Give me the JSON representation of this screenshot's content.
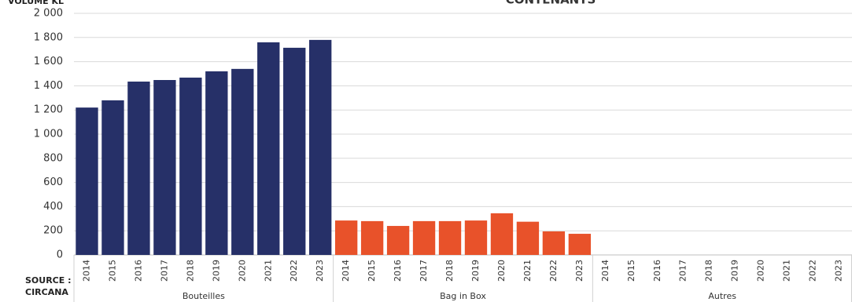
{
  "chart_data": {
    "type": "bar",
    "title": "CONTENANTS",
    "y_label": "VOLUME KL",
    "source": [
      "SOURCE :",
      "CIRCANA"
    ],
    "groups": [
      {
        "name": "Bouteilles",
        "color": "#263068",
        "categories": [
          "2014",
          "2015",
          "2016",
          "2017",
          "2018",
          "2019",
          "2020",
          "2021",
          "2022",
          "2023"
        ],
        "values": [
          1220,
          1280,
          1435,
          1448,
          1468,
          1520,
          1540,
          1760,
          1715,
          1780
        ]
      },
      {
        "name": "Bag in Box",
        "color": "#e8522a",
        "categories": [
          "2014",
          "2015",
          "2016",
          "2017",
          "2018",
          "2019",
          "2020",
          "2021",
          "2022",
          "2023"
        ],
        "values": [
          285,
          280,
          240,
          280,
          280,
          285,
          345,
          275,
          195,
          175
        ]
      },
      {
        "name": "Autres",
        "color": "#7f7f7f",
        "categories": [
          "2014",
          "2015",
          "2016",
          "2017",
          "2018",
          "2019",
          "2020",
          "2021",
          "2022",
          "2023"
        ],
        "values": [
          0,
          0,
          0,
          0,
          0,
          0,
          0,
          0,
          0,
          0
        ]
      }
    ],
    "ylim": [
      0,
      2000
    ],
    "yticks": [
      0,
      200,
      400,
      600,
      800,
      {
        "value": 1000,
        "label": "1 000"
      },
      {
        "value": 1200,
        "label": "1 200"
      },
      {
        "value": 1400,
        "label": "1 400"
      },
      {
        "value": 1600,
        "label": "1 600"
      },
      {
        "value": 1800,
        "label": "1 800"
      },
      {
        "value": 2000,
        "label": "2 000"
      }
    ],
    "grid": true
  }
}
